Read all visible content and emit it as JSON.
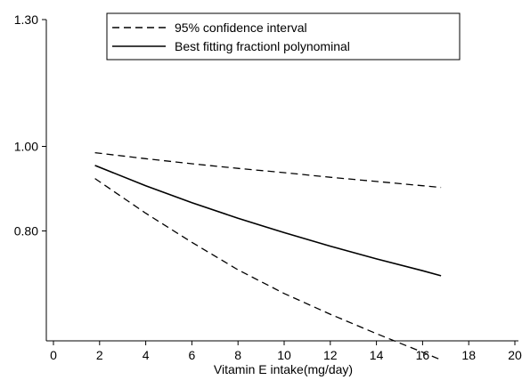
{
  "chart_data": {
    "type": "line",
    "title": "",
    "xlabel": "Vitamin E intake(mg/day)",
    "ylabel": "",
    "xlim": [
      0,
      20
    ],
    "ylim": [
      0.54,
      1.3
    ],
    "grid": false,
    "legend_position": "top-left",
    "x_ticks": [
      {
        "value": 0,
        "label": "0"
      },
      {
        "value": 2,
        "label": "2"
      },
      {
        "value": 4,
        "label": "4"
      },
      {
        "value": 6,
        "label": "6"
      },
      {
        "value": 8,
        "label": "8"
      },
      {
        "value": 10,
        "label": "10"
      },
      {
        "value": 12,
        "label": "12"
      },
      {
        "value": 14,
        "label": "14"
      },
      {
        "value": 16,
        "label": "16"
      },
      {
        "value": 18,
        "label": "18"
      },
      {
        "value": 20,
        "label": "20"
      }
    ],
    "y_ticks": [
      {
        "value": 0.8,
        "label": "0.80"
      },
      {
        "value": 1.0,
        "label": "1.00"
      },
      {
        "value": 1.3,
        "label": "1.30"
      }
    ],
    "x": [
      1.8,
      4,
      6,
      8,
      10,
      12,
      14,
      16,
      16.8
    ],
    "series": [
      {
        "name": "Best fitting fractionl polynominal",
        "style": "solid",
        "values": [
          0.955,
          0.907,
          0.867,
          0.83,
          0.796,
          0.764,
          0.734,
          0.706,
          0.694
        ]
      },
      {
        "name": "95% confidence interval",
        "style": "dashed",
        "values": [
          0.985,
          0.971,
          0.959,
          0.948,
          0.938,
          0.927,
          0.917,
          0.907,
          0.903
        ]
      },
      {
        "name": "",
        "style": "dashed",
        "values": [
          0.924,
          0.842,
          0.773,
          0.708,
          0.652,
          0.603,
          0.557,
          0.513,
          0.495
        ]
      }
    ],
    "legend": [
      {
        "label": "95% confidence interval",
        "style": "dashed"
      },
      {
        "label": "Best fitting fractionl polynominal",
        "style": "solid"
      }
    ]
  }
}
